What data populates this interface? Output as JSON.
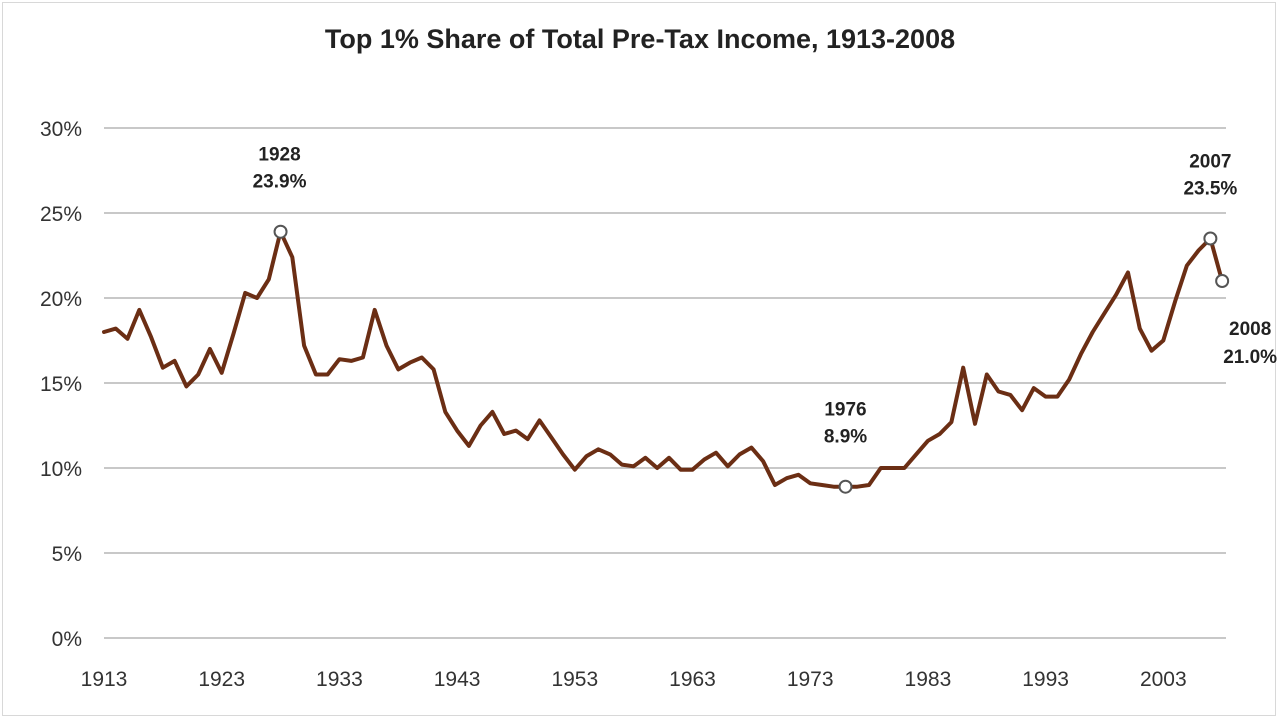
{
  "chart_data": {
    "type": "line",
    "title": "Top 1% Share of Total Pre-Tax Income, 1913-2008",
    "xlabel": "",
    "ylabel": "",
    "xlim": [
      1913,
      2008
    ],
    "ylim": [
      0,
      30
    ],
    "grid": true,
    "x_ticks": [
      "1913",
      "1923",
      "1933",
      "1943",
      "1953",
      "1963",
      "1973",
      "1983",
      "1993",
      "2003"
    ],
    "y_ticks": [
      "0%",
      "5%",
      "10%",
      "15%",
      "20%",
      "25%",
      "30%"
    ],
    "series": [
      {
        "name": "Top 1% share",
        "color": "#6b2e14",
        "x": [
          1913,
          1914,
          1915,
          1916,
          1917,
          1918,
          1919,
          1920,
          1921,
          1922,
          1923,
          1924,
          1925,
          1926,
          1927,
          1928,
          1929,
          1930,
          1931,
          1932,
          1933,
          1934,
          1935,
          1936,
          1937,
          1938,
          1939,
          1940,
          1941,
          1942,
          1943,
          1944,
          1945,
          1946,
          1947,
          1948,
          1949,
          1950,
          1951,
          1952,
          1953,
          1954,
          1955,
          1956,
          1957,
          1958,
          1959,
          1960,
          1961,
          1962,
          1963,
          1964,
          1965,
          1966,
          1967,
          1968,
          1969,
          1970,
          1971,
          1972,
          1973,
          1974,
          1975,
          1976,
          1977,
          1978,
          1979,
          1980,
          1981,
          1982,
          1983,
          1984,
          1985,
          1986,
          1987,
          1988,
          1989,
          1990,
          1991,
          1992,
          1993,
          1994,
          1995,
          1996,
          1997,
          1998,
          1999,
          2000,
          2001,
          2002,
          2003,
          2004,
          2005,
          2006,
          2007,
          2008
        ],
        "values": [
          18.0,
          18.2,
          17.6,
          19.3,
          17.7,
          15.9,
          16.3,
          14.8,
          15.5,
          17.0,
          15.6,
          17.9,
          20.3,
          20.0,
          21.1,
          23.9,
          22.4,
          17.2,
          15.5,
          15.5,
          16.4,
          16.3,
          16.5,
          19.3,
          17.2,
          15.8,
          16.2,
          16.5,
          15.8,
          13.3,
          12.2,
          11.3,
          12.5,
          13.3,
          12.0,
          12.2,
          11.7,
          12.8,
          11.8,
          10.8,
          9.9,
          10.7,
          11.1,
          10.8,
          10.2,
          10.1,
          10.6,
          10.0,
          10.6,
          9.9,
          9.9,
          10.5,
          10.9,
          10.1,
          10.8,
          11.2,
          10.4,
          9.0,
          9.4,
          9.6,
          9.1,
          9.0,
          8.9,
          8.9,
          8.9,
          9.0,
          10.0,
          10.0,
          10.0,
          10.8,
          11.6,
          12.0,
          12.7,
          15.9,
          12.6,
          15.5,
          14.5,
          14.3,
          13.4,
          14.7,
          14.2,
          14.2,
          15.2,
          16.7,
          18.0,
          19.1,
          20.2,
          21.5,
          18.2,
          16.9,
          17.5,
          19.8,
          21.9,
          22.8,
          23.5,
          21.0
        ]
      }
    ],
    "annotations": [
      {
        "year": 1928,
        "value": 23.9,
        "year_label": "1928",
        "value_label": "23.9%",
        "placement": "above"
      },
      {
        "year": 1976,
        "value": 8.9,
        "year_label": "1976",
        "value_label": "8.9%",
        "placement": "above"
      },
      {
        "year": 2007,
        "value": 23.5,
        "year_label": "2007",
        "value_label": "23.5%",
        "placement": "above"
      },
      {
        "year": 2008,
        "value": 21.0,
        "year_label": "2008",
        "value_label": "21.0%",
        "placement": "below-right"
      }
    ]
  }
}
